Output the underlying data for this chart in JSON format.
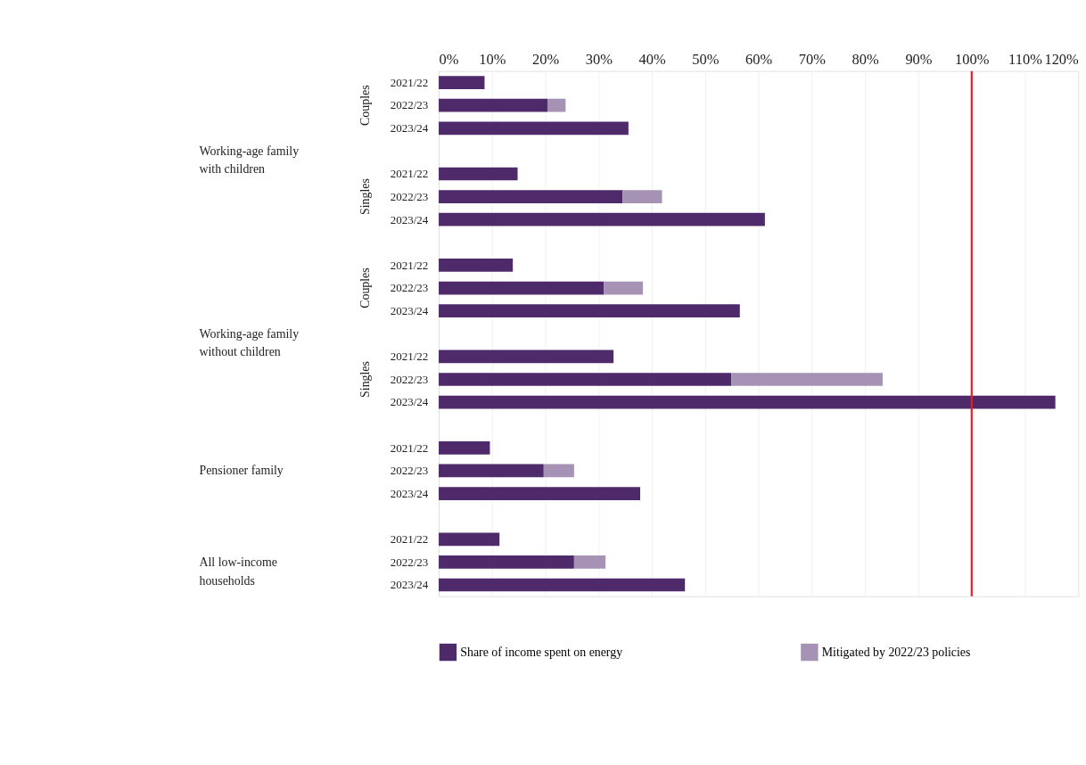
{
  "chart_data": {
    "type": "bar",
    "orientation": "horizontal",
    "stacked": true,
    "categories": [
      "2021/22",
      "2022/23",
      "2023/24",
      "2021/22",
      "2022/23",
      "2023/24",
      "2021/22",
      "2022/23",
      "2023/24",
      "2021/22",
      "2022/23",
      "2023/24",
      "2021/22",
      "2022/23",
      "2023/24",
      "2021/22",
      "2022/23",
      "2023/24"
    ],
    "series": [
      {
        "name": "Share of income spent on energy",
        "color": "#4f2a6b",
        "values": [
          8.6,
          20.4,
          35.6,
          14.8,
          34.5,
          61.2,
          13.9,
          31.0,
          56.5,
          32.8,
          54.9,
          115.7,
          9.6,
          19.7,
          37.8,
          11.4,
          25.4,
          46.2
        ]
      },
      {
        "name": "Mitigated by 2022/23 policies",
        "color": "#a592b5",
        "values": [
          null,
          3.4,
          null,
          null,
          7.4,
          null,
          null,
          7.3,
          null,
          null,
          28.4,
          null,
          null,
          5.7,
          null,
          null,
          5.9,
          null
        ]
      }
    ],
    "xlim": [
      0,
      120
    ],
    "xticks": [
      {
        "value": 0,
        "label": "0%"
      },
      {
        "value": 10,
        "label": "10%"
      },
      {
        "value": 20,
        "label": "20%"
      },
      {
        "value": 30,
        "label": "30%"
      },
      {
        "value": 40,
        "label": "40%"
      },
      {
        "value": 50,
        "label": "50%"
      },
      {
        "value": 60,
        "label": "60%"
      },
      {
        "value": 70,
        "label": "70%"
      },
      {
        "value": 80,
        "label": "80%"
      },
      {
        "value": 90,
        "label": "90%"
      },
      {
        "value": 100,
        "label": "100%"
      },
      {
        "value": 110,
        "label": "110%"
      },
      {
        "value": 120,
        "label": "120%"
      }
    ],
    "ref_lines": [
      {
        "axis": "x",
        "value": 100,
        "color": "#e0202a"
      }
    ],
    "annotations": [
      "Couples",
      "Singles",
      "Couples",
      "Singles",
      "Working-age family\nwith children",
      "Working-age family\nwithout children",
      "Pensioner family",
      "All low-income\nhouseholds"
    ],
    "grid": "x",
    "legend": "bottom"
  }
}
